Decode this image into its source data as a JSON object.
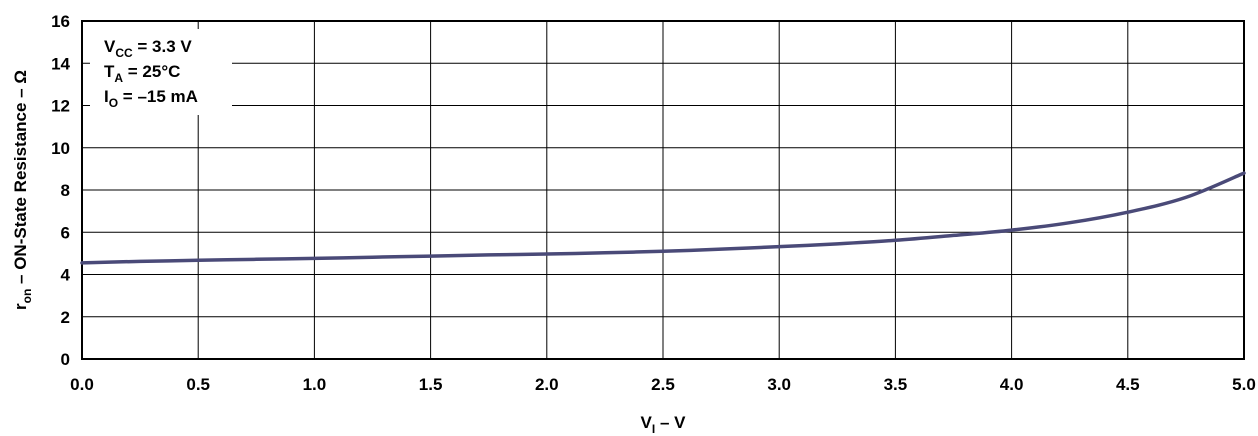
{
  "chart_data": {
    "type": "line",
    "title": "",
    "xlabel": {
      "main": "V",
      "sub": "I",
      "suffix": " – V"
    },
    "ylabel": {
      "main": "r",
      "sub": "on",
      "suffix": " – ON-State Resistance – Ω"
    },
    "xlim": [
      0,
      5
    ],
    "ylim": [
      0,
      16
    ],
    "xticks": [
      "0.0",
      "0.5",
      "1.0",
      "1.5",
      "2.0",
      "2.5",
      "3.0",
      "3.5",
      "4.0",
      "4.5",
      "5.0"
    ],
    "yticks": [
      "0",
      "2",
      "4",
      "6",
      "8",
      "10",
      "12",
      "14",
      "16"
    ],
    "grid": true,
    "line_color": "#4a4a78",
    "series": [
      {
        "x": [
          0.0,
          0.25,
          0.5,
          0.75,
          1.0,
          1.25,
          1.5,
          1.75,
          2.0,
          2.25,
          2.5,
          2.75,
          3.0,
          3.25,
          3.5,
          3.75,
          4.0,
          4.25,
          4.5,
          4.75,
          5.0
        ],
        "values": [
          4.55,
          4.62,
          4.67,
          4.72,
          4.76,
          4.82,
          4.87,
          4.93,
          4.97,
          5.03,
          5.1,
          5.2,
          5.32,
          5.45,
          5.62,
          5.85,
          6.1,
          6.45,
          6.95,
          7.65,
          8.8
        ]
      }
    ],
    "annotations": [
      {
        "main": "V",
        "sub": "CC",
        "rest": " = 3.3 V"
      },
      {
        "main": "T",
        "sub": "A",
        "rest": " = 25°C"
      },
      {
        "main": "I",
        "sub": "O",
        "rest": " = –15 mA"
      }
    ]
  }
}
